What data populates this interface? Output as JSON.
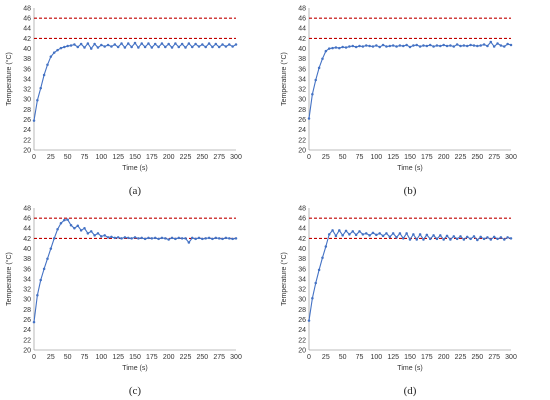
{
  "chart_data": [
    {
      "type": "line",
      "panel_label": "(a)",
      "xlabel": "Time (s)",
      "ylabel": "Temperature (°C)",
      "xlim": [
        0,
        300
      ],
      "ylim": [
        20,
        48
      ],
      "xticks": [
        0,
        25,
        50,
        75,
        100,
        125,
        150,
        175,
        200,
        225,
        250,
        275,
        300
      ],
      "yticks": [
        20,
        22,
        24,
        26,
        28,
        30,
        32,
        34,
        36,
        38,
        40,
        42,
        44,
        46,
        48
      ],
      "reference_lines": [
        42,
        46
      ],
      "grid": false,
      "colors": {
        "series": "#4472c4",
        "reference": "#c00000"
      },
      "series": [
        {
          "x": [
            0,
            5,
            10,
            15,
            20,
            25,
            30,
            35,
            40,
            45,
            50,
            55,
            60,
            65,
            70,
            75,
            80,
            85,
            90,
            95,
            100,
            105,
            110,
            115,
            120,
            125,
            130,
            135,
            140,
            145,
            150,
            155,
            160,
            165,
            170,
            175,
            180,
            185,
            190,
            195,
            200,
            205,
            210,
            215,
            220,
            225,
            230,
            235,
            240,
            245,
            250,
            255,
            260,
            265,
            270,
            275,
            280,
            285,
            290,
            295,
            300
          ],
          "y": [
            25.8,
            29.8,
            32.2,
            34.8,
            36.8,
            38.4,
            39.2,
            39.7,
            40.1,
            40.3,
            40.5,
            40.6,
            40.8,
            40.3,
            40.9,
            40.2,
            41.0,
            40.0,
            40.9,
            40.2,
            40.7,
            40.4,
            40.7,
            40.4,
            40.8,
            40.3,
            41.0,
            40.2,
            41.0,
            40.3,
            41.1,
            40.2,
            41.0,
            40.3,
            41.0,
            40.2,
            40.9,
            40.3,
            41.0,
            40.3,
            40.9,
            40.2,
            41.0,
            40.3,
            40.9,
            40.2,
            41.0,
            40.3,
            40.9,
            40.4,
            40.8,
            40.3,
            41.0,
            40.3,
            40.9,
            40.3,
            40.8,
            40.4,
            40.8,
            40.4,
            40.8
          ]
        }
      ]
    },
    {
      "type": "line",
      "panel_label": "(b)",
      "xlabel": "Time (s)",
      "ylabel": "Temperature (°C)",
      "xlim": [
        0,
        300
      ],
      "ylim": [
        20,
        48
      ],
      "xticks": [
        0,
        25,
        50,
        75,
        100,
        125,
        150,
        175,
        200,
        225,
        250,
        275,
        300
      ],
      "yticks": [
        20,
        22,
        24,
        26,
        28,
        30,
        32,
        34,
        36,
        38,
        40,
        42,
        44,
        46,
        48
      ],
      "reference_lines": [
        42,
        46
      ],
      "grid": false,
      "colors": {
        "series": "#4472c4",
        "reference": "#c00000"
      },
      "series": [
        {
          "x": [
            0,
            5,
            10,
            15,
            20,
            25,
            30,
            35,
            40,
            45,
            50,
            55,
            60,
            65,
            70,
            75,
            80,
            85,
            90,
            95,
            100,
            105,
            110,
            115,
            120,
            125,
            130,
            135,
            140,
            145,
            150,
            155,
            160,
            165,
            170,
            175,
            180,
            185,
            190,
            195,
            200,
            205,
            210,
            215,
            220,
            225,
            230,
            235,
            240,
            245,
            250,
            255,
            260,
            265,
            270,
            275,
            280,
            285,
            290,
            295,
            300
          ],
          "y": [
            26.2,
            31.0,
            33.8,
            36.2,
            38.0,
            39.5,
            40.0,
            40.1,
            40.2,
            40.1,
            40.3,
            40.2,
            40.4,
            40.5,
            40.3,
            40.5,
            40.4,
            40.6,
            40.5,
            40.4,
            40.6,
            40.3,
            40.7,
            40.4,
            40.5,
            40.6,
            40.4,
            40.6,
            40.5,
            40.7,
            40.3,
            40.6,
            40.7,
            40.4,
            40.6,
            40.5,
            40.7,
            40.4,
            40.6,
            40.5,
            40.7,
            40.5,
            40.6,
            40.4,
            40.8,
            40.5,
            40.6,
            40.5,
            40.7,
            40.6,
            40.5,
            40.6,
            40.8,
            40.5,
            41.3,
            40.4,
            41.0,
            40.6,
            40.4,
            40.9,
            40.7
          ]
        }
      ]
    },
    {
      "type": "line",
      "panel_label": "(c)",
      "xlabel": "Time (s)",
      "ylabel": "Temperature (°C)",
      "xlim": [
        0,
        300
      ],
      "ylim": [
        20,
        48
      ],
      "xticks": [
        0,
        25,
        50,
        75,
        100,
        125,
        150,
        175,
        200,
        225,
        250,
        275,
        300
      ],
      "yticks": [
        20,
        22,
        24,
        26,
        28,
        30,
        32,
        34,
        36,
        38,
        40,
        42,
        44,
        46,
        48
      ],
      "reference_lines": [
        42,
        46
      ],
      "grid": false,
      "colors": {
        "series": "#4472c4",
        "reference": "#c00000"
      },
      "series": [
        {
          "x": [
            0,
            5,
            10,
            15,
            20,
            25,
            30,
            35,
            40,
            45,
            50,
            55,
            60,
            65,
            70,
            75,
            80,
            85,
            90,
            95,
            100,
            105,
            110,
            115,
            120,
            125,
            130,
            135,
            140,
            145,
            150,
            155,
            160,
            165,
            170,
            175,
            180,
            185,
            190,
            195,
            200,
            205,
            210,
            215,
            220,
            225,
            230,
            235,
            240,
            245,
            250,
            255,
            260,
            265,
            270,
            275,
            280,
            285,
            290,
            295,
            300
          ],
          "y": [
            25.5,
            30.8,
            33.8,
            36.0,
            38.0,
            40.0,
            42.0,
            43.8,
            45.0,
            45.6,
            45.7,
            44.6,
            44.0,
            44.5,
            43.6,
            44.0,
            43.0,
            43.4,
            42.6,
            43.0,
            42.4,
            42.6,
            42.2,
            42.3,
            42.1,
            42.2,
            42.0,
            42.2,
            42.1,
            42.0,
            42.2,
            42.0,
            42.1,
            41.9,
            42.1,
            42.0,
            42.1,
            41.9,
            42.1,
            42.0,
            41.8,
            42.1,
            41.9,
            42.1,
            42.0,
            42.0,
            41.2,
            42.1,
            41.9,
            42.1,
            41.9,
            42.0,
            42.1,
            41.9,
            42.1,
            42.0,
            41.9,
            42.1,
            42.0,
            41.9,
            42.0
          ]
        }
      ]
    },
    {
      "type": "line",
      "panel_label": "(d)",
      "xlabel": "Time (s)",
      "ylabel": "Temperature (°C)",
      "xlim": [
        0,
        300
      ],
      "ylim": [
        20,
        48
      ],
      "xticks": [
        0,
        25,
        50,
        75,
        100,
        125,
        150,
        175,
        200,
        225,
        250,
        275,
        300
      ],
      "yticks": [
        20,
        22,
        24,
        26,
        28,
        30,
        32,
        34,
        36,
        38,
        40,
        42,
        44,
        46,
        48
      ],
      "reference_lines": [
        42,
        46
      ],
      "grid": false,
      "colors": {
        "series": "#4472c4",
        "reference": "#c00000"
      },
      "series": [
        {
          "x": [
            0,
            5,
            10,
            15,
            20,
            25,
            30,
            35,
            40,
            45,
            50,
            55,
            60,
            65,
            70,
            75,
            80,
            85,
            90,
            95,
            100,
            105,
            110,
            115,
            120,
            125,
            130,
            135,
            140,
            145,
            150,
            155,
            160,
            165,
            170,
            175,
            180,
            185,
            190,
            195,
            200,
            205,
            210,
            215,
            220,
            225,
            230,
            235,
            240,
            245,
            250,
            255,
            260,
            265,
            270,
            275,
            280,
            285,
            290,
            295,
            300
          ],
          "y": [
            25.8,
            30.2,
            33.2,
            35.8,
            38.2,
            40.4,
            42.8,
            43.6,
            42.5,
            43.6,
            42.6,
            43.5,
            42.8,
            43.4,
            42.7,
            43.4,
            42.8,
            43.0,
            42.6,
            43.1,
            42.7,
            43.0,
            42.5,
            43.0,
            42.3,
            43.0,
            42.2,
            43.0,
            42.0,
            43.0,
            41.8,
            42.8,
            41.8,
            42.8,
            41.8,
            42.7,
            41.9,
            42.6,
            41.9,
            42.6,
            41.8,
            42.5,
            41.8,
            42.4,
            41.9,
            42.4,
            41.8,
            42.3,
            41.9,
            42.4,
            41.7,
            42.3,
            41.9,
            42.2,
            41.8,
            42.3,
            41.9,
            42.2,
            41.8,
            42.2,
            42.0
          ]
        }
      ]
    }
  ]
}
